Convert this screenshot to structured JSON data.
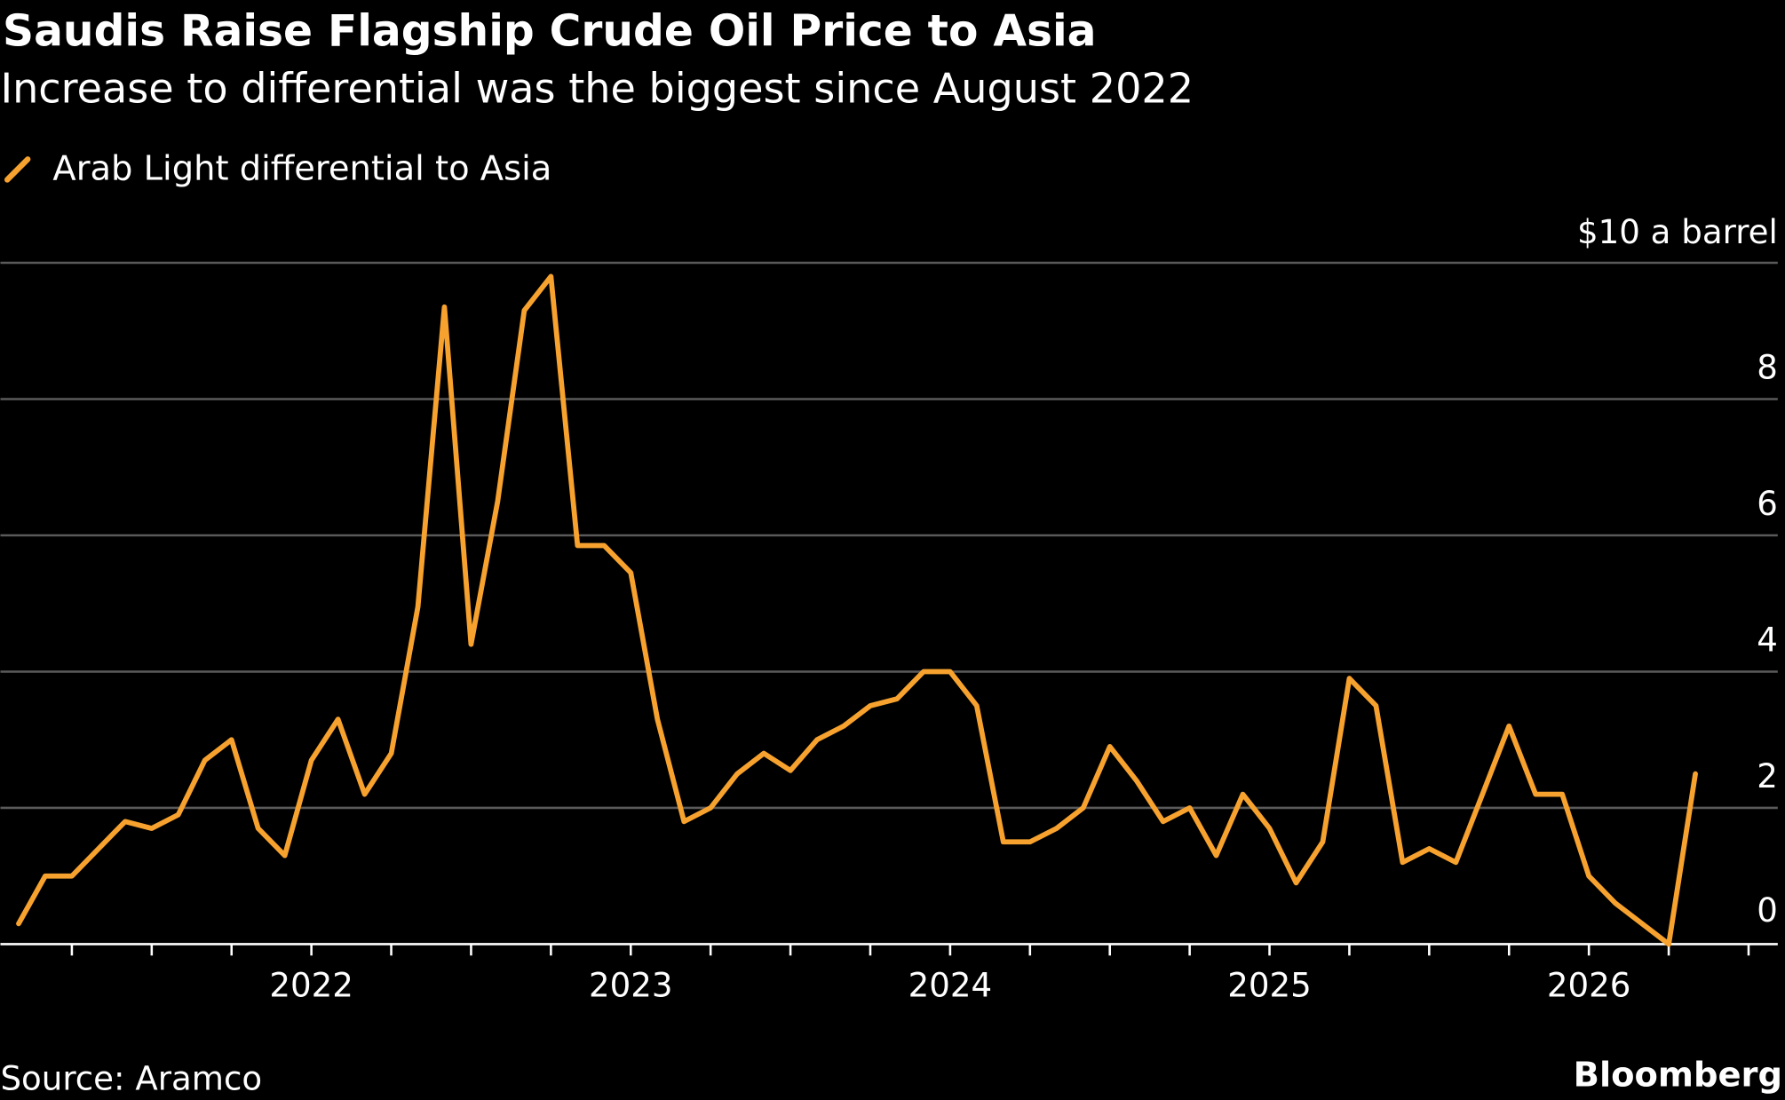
{
  "colors": {
    "line": "#F7A22E",
    "grid": "#5a5a5a",
    "axis": "#ffffff",
    "background": "#000000"
  },
  "footer": {
    "source": "Source: Aramco",
    "brand": "Bloomberg"
  },
  "chart_data": {
    "type": "line",
    "title": "Saudis Raise Flagship Crude Oil Price to Asia",
    "subtitle": "Increase to differential was the biggest since August 2022",
    "legend": [
      {
        "name": "Arab Light differential to Asia",
        "icon": "slash-line-icon",
        "placement": "top-left"
      }
    ],
    "ylabel": "$10 a barrel",
    "ylim": [
      0,
      10
    ],
    "yticks": [
      0,
      2,
      4,
      6,
      8
    ],
    "ytick_top_label": "$10 a barrel",
    "xticks": [
      "2022",
      "2023",
      "2024",
      "2025",
      "2026"
    ],
    "grid": true,
    "start_month": "2021-02",
    "frequency": "monthly",
    "series": [
      {
        "name": "Arab Light differential to Asia",
        "values": [
          0.3,
          1.0,
          1.0,
          1.4,
          1.8,
          1.7,
          1.9,
          2.7,
          3.0,
          1.7,
          1.3,
          2.7,
          3.3,
          2.2,
          2.8,
          4.95,
          9.35,
          4.4,
          6.5,
          9.3,
          9.8,
          5.85,
          5.85,
          5.45,
          3.3,
          1.8,
          2.0,
          2.5,
          2.8,
          2.55,
          3.0,
          3.2,
          3.5,
          3.6,
          4.0,
          4.0,
          3.5,
          1.5,
          1.5,
          1.7,
          2.0,
          2.9,
          2.4,
          1.8,
          2.0,
          1.3,
          2.2,
          1.7,
          0.9,
          1.5,
          3.9,
          3.5,
          1.2,
          1.4,
          1.2,
          2.2,
          3.2,
          2.2,
          2.2,
          1.0,
          0.6,
          0.3,
          0.0,
          2.5
        ]
      }
    ]
  }
}
